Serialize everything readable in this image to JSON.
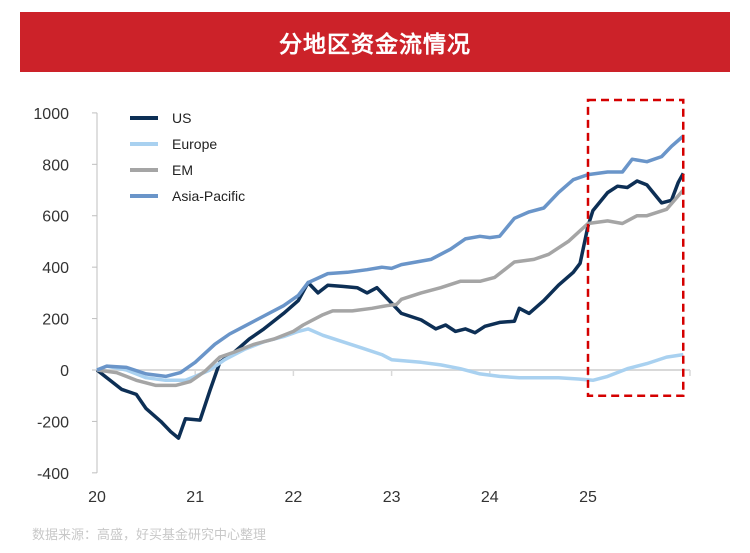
{
  "title": "分地区资金流情况",
  "source": "数据来源：高盛，好买基金研究中心整理",
  "chart_data": {
    "type": "line",
    "title": "分地区资金流情况",
    "xlabel": "",
    "ylabel": "",
    "xlim": [
      20,
      26
    ],
    "ylim": [
      -400,
      1000
    ],
    "x_ticks": [
      "20",
      "21",
      "22",
      "23",
      "24",
      "25"
    ],
    "y_ticks": [
      "1000",
      "800",
      "600",
      "400",
      "200",
      "0",
      "-200",
      "-400"
    ],
    "legend_position": "top-left",
    "highlight_box": {
      "x": [
        25.0,
        25.97
      ],
      "y": [
        -100,
        1050
      ],
      "color": "#d40000"
    },
    "series": [
      {
        "name": "US",
        "color": "#0d2f55",
        "points": [
          [
            20.0,
            0
          ],
          [
            20.1,
            -30
          ],
          [
            20.25,
            -75
          ],
          [
            20.4,
            -95
          ],
          [
            20.5,
            -150
          ],
          [
            20.65,
            -200
          ],
          [
            20.75,
            -240
          ],
          [
            20.83,
            -265
          ],
          [
            20.9,
            -190
          ],
          [
            21.05,
            -195
          ],
          [
            21.15,
            -80
          ],
          [
            21.25,
            30
          ],
          [
            21.4,
            70
          ],
          [
            21.55,
            120
          ],
          [
            21.7,
            160
          ],
          [
            21.9,
            220
          ],
          [
            22.05,
            270
          ],
          [
            22.15,
            340
          ],
          [
            22.25,
            300
          ],
          [
            22.35,
            330
          ],
          [
            22.5,
            325
          ],
          [
            22.65,
            320
          ],
          [
            22.75,
            300
          ],
          [
            22.85,
            320
          ],
          [
            22.95,
            280
          ],
          [
            23.1,
            220
          ],
          [
            23.3,
            195
          ],
          [
            23.45,
            160
          ],
          [
            23.55,
            175
          ],
          [
            23.65,
            150
          ],
          [
            23.75,
            160
          ],
          [
            23.85,
            145
          ],
          [
            23.95,
            170
          ],
          [
            24.1,
            185
          ],
          [
            24.25,
            190
          ],
          [
            24.3,
            240
          ],
          [
            24.4,
            220
          ],
          [
            24.55,
            270
          ],
          [
            24.7,
            330
          ],
          [
            24.85,
            380
          ],
          [
            24.92,
            415
          ],
          [
            25.0,
            560
          ],
          [
            25.05,
            620
          ],
          [
            25.2,
            690
          ],
          [
            25.3,
            715
          ],
          [
            25.4,
            710
          ],
          [
            25.5,
            735
          ],
          [
            25.6,
            720
          ],
          [
            25.75,
            650
          ],
          [
            25.85,
            660
          ],
          [
            25.92,
            730
          ],
          [
            25.97,
            765
          ]
        ]
      },
      {
        "name": "Europe",
        "color": "#a9d1f0",
        "points": [
          [
            20.0,
            0
          ],
          [
            20.1,
            15
          ],
          [
            20.3,
            0
          ],
          [
            20.5,
            -30
          ],
          [
            20.7,
            -40
          ],
          [
            20.9,
            -40
          ],
          [
            21.0,
            -25
          ],
          [
            21.15,
            0
          ],
          [
            21.3,
            40
          ],
          [
            21.5,
            80
          ],
          [
            21.7,
            110
          ],
          [
            21.9,
            130
          ],
          [
            22.05,
            150
          ],
          [
            22.15,
            160
          ],
          [
            22.3,
            135
          ],
          [
            22.5,
            110
          ],
          [
            22.7,
            85
          ],
          [
            22.9,
            60
          ],
          [
            23.0,
            40
          ],
          [
            23.15,
            35
          ],
          [
            23.3,
            30
          ],
          [
            23.5,
            20
          ],
          [
            23.7,
            5
          ],
          [
            23.9,
            -15
          ],
          [
            24.1,
            -25
          ],
          [
            24.3,
            -30
          ],
          [
            24.5,
            -30
          ],
          [
            24.7,
            -30
          ],
          [
            24.9,
            -35
          ],
          [
            25.05,
            -40
          ],
          [
            25.2,
            -25
          ],
          [
            25.4,
            5
          ],
          [
            25.6,
            25
          ],
          [
            25.8,
            50
          ],
          [
            25.97,
            60
          ]
        ]
      },
      {
        "name": "EM",
        "color": "#a5a5a5",
        "points": [
          [
            20.0,
            0
          ],
          [
            20.2,
            -10
          ],
          [
            20.4,
            -40
          ],
          [
            20.6,
            -60
          ],
          [
            20.8,
            -60
          ],
          [
            20.95,
            -45
          ],
          [
            21.1,
            -5
          ],
          [
            21.25,
            50
          ],
          [
            21.4,
            70
          ],
          [
            21.6,
            100
          ],
          [
            21.8,
            120
          ],
          [
            22.0,
            150
          ],
          [
            22.1,
            175
          ],
          [
            22.3,
            215
          ],
          [
            22.4,
            230
          ],
          [
            22.6,
            230
          ],
          [
            22.8,
            240
          ],
          [
            22.95,
            250
          ],
          [
            23.05,
            255
          ],
          [
            23.1,
            275
          ],
          [
            23.3,
            300
          ],
          [
            23.5,
            320
          ],
          [
            23.7,
            345
          ],
          [
            23.9,
            345
          ],
          [
            24.05,
            360
          ],
          [
            24.25,
            420
          ],
          [
            24.45,
            430
          ],
          [
            24.6,
            450
          ],
          [
            24.8,
            500
          ],
          [
            25.0,
            570
          ],
          [
            25.2,
            580
          ],
          [
            25.35,
            570
          ],
          [
            25.5,
            600
          ],
          [
            25.6,
            600
          ],
          [
            25.8,
            625
          ],
          [
            25.97,
            700
          ]
        ]
      },
      {
        "name": "Asia-Pacific",
        "color": "#6a95c9",
        "points": [
          [
            20.0,
            0
          ],
          [
            20.1,
            15
          ],
          [
            20.3,
            10
          ],
          [
            20.5,
            -15
          ],
          [
            20.7,
            -25
          ],
          [
            20.85,
            -10
          ],
          [
            21.0,
            30
          ],
          [
            21.2,
            100
          ],
          [
            21.35,
            140
          ],
          [
            21.5,
            170
          ],
          [
            21.7,
            210
          ],
          [
            21.9,
            250
          ],
          [
            22.05,
            290
          ],
          [
            22.15,
            340
          ],
          [
            22.35,
            375
          ],
          [
            22.55,
            380
          ],
          [
            22.75,
            390
          ],
          [
            22.9,
            400
          ],
          [
            23.0,
            395
          ],
          [
            23.1,
            410
          ],
          [
            23.25,
            420
          ],
          [
            23.4,
            430
          ],
          [
            23.6,
            470
          ],
          [
            23.75,
            510
          ],
          [
            23.9,
            520
          ],
          [
            24.0,
            515
          ],
          [
            24.1,
            520
          ],
          [
            24.25,
            590
          ],
          [
            24.4,
            615
          ],
          [
            24.55,
            630
          ],
          [
            24.7,
            690
          ],
          [
            24.85,
            740
          ],
          [
            25.0,
            760
          ],
          [
            25.2,
            770
          ],
          [
            25.35,
            770
          ],
          [
            25.45,
            820
          ],
          [
            25.6,
            810
          ],
          [
            25.75,
            830
          ],
          [
            25.85,
            870
          ],
          [
            25.97,
            910
          ]
        ]
      }
    ]
  }
}
